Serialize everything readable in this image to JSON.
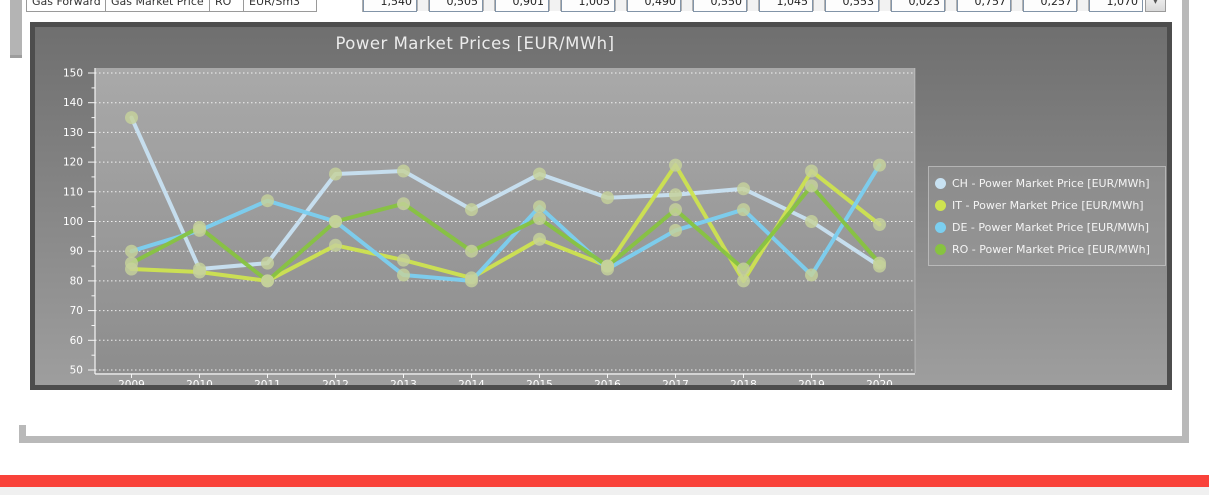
{
  "page": {
    "frame_color": "#b9b9b9",
    "accent_red": "#f9423a"
  },
  "table_row": {
    "labels": [
      "Gas Forward",
      "Gas Market Price",
      "RO",
      "EUR/Sm3"
    ],
    "values": [
      "1,540",
      "0,505",
      "0,901",
      "1,005",
      "0,490",
      "0,550",
      "1,045",
      "0,553",
      "0,023",
      "0,757",
      "0,257",
      "1,070"
    ],
    "dropdown_icon": "▼"
  },
  "chart_data": {
    "type": "line",
    "title": "Power Market Prices [EUR/MWh]",
    "x": [
      2009,
      2010,
      2011,
      2012,
      2013,
      2014,
      2015,
      2016,
      2017,
      2018,
      2019,
      2020
    ],
    "xlabel": "",
    "ylabel": "",
    "ylim": [
      50,
      150
    ],
    "ytick_step": 10,
    "grid": "horizontal-dotted-white",
    "legend_position": "right",
    "marker_color": "#c6d29b",
    "series": [
      {
        "name": "CH - Power Market Price [EUR/MWh]",
        "color": "#c8e2f2",
        "values": [
          135,
          84,
          86,
          116,
          117,
          104,
          116,
          108,
          109,
          111,
          100,
          85
        ]
      },
      {
        "name": "IT - Power Market Price [EUR/MWh]",
        "color": "#cee350",
        "values": [
          84,
          83,
          80,
          92,
          87,
          81,
          94,
          85,
          119,
          80,
          117,
          99
        ]
      },
      {
        "name": "DE - Power Market Price [EUR/MWh]",
        "color": "#7bcff0",
        "values": [
          90,
          97,
          107,
          100,
          82,
          80,
          105,
          84,
          97,
          104,
          82,
          119
        ]
      },
      {
        "name": "RO - Power Market Price [EUR/MWh]",
        "color": "#87c340",
        "values": [
          86,
          98,
          80,
          100,
          106,
          90,
          101,
          85,
          104,
          84,
          112,
          86
        ]
      }
    ]
  }
}
